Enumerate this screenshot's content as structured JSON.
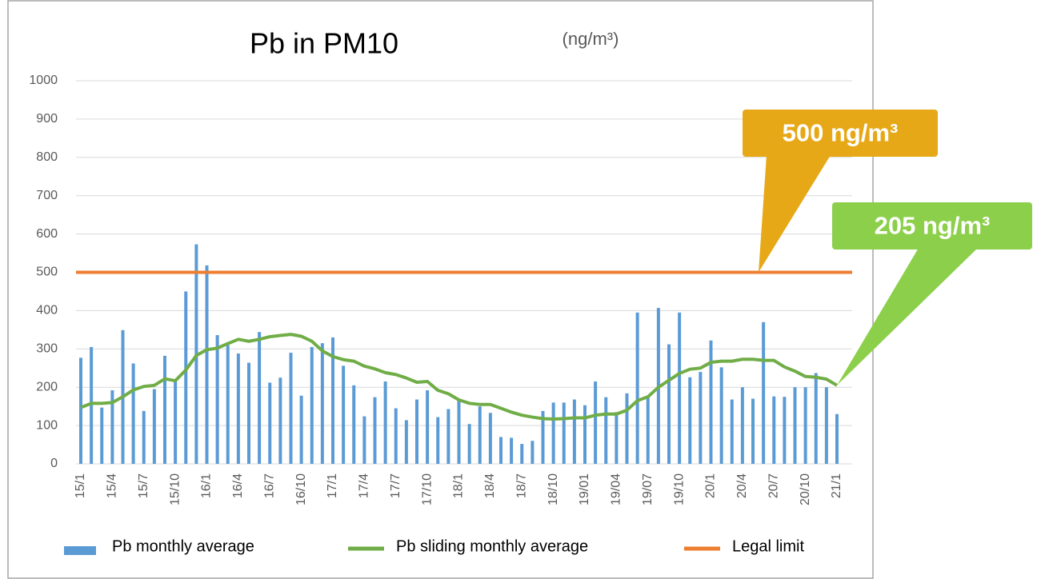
{
  "chart_data": {
    "type": "bar_line",
    "title": "Pb in PM10",
    "subtitle": "(ng/m³)",
    "categories": [
      "15/1",
      null,
      null,
      "15/4",
      null,
      null,
      "15/7",
      null,
      null,
      "15/10",
      null,
      null,
      "16/1",
      null,
      null,
      "16/4",
      null,
      null,
      "16/7",
      null,
      null,
      "16/10",
      null,
      null,
      "17/1",
      null,
      null,
      "17/4",
      null,
      null,
      "17/7",
      null,
      null,
      "17/10",
      null,
      null,
      "18/1",
      null,
      null,
      "18/4",
      null,
      null,
      "18/7",
      null,
      null,
      "18/10",
      null,
      null,
      "19/01",
      null,
      null,
      "19/04",
      null,
      null,
      "19/07",
      null,
      null,
      "19/10",
      null,
      null,
      "20/1",
      null,
      null,
      "20/4",
      null,
      null,
      "20/7",
      null,
      null,
      "20/10",
      null,
      null,
      "21/1"
    ],
    "series": [
      {
        "name": "Pb monthly average",
        "type": "bar",
        "color": "#5b9bd5",
        "values": [
          277,
          305,
          147,
          192,
          349,
          262,
          138,
          195,
          282,
          220,
          450,
          573,
          518,
          336,
          310,
          288,
          264,
          344,
          212,
          225,
          290,
          178,
          305,
          315,
          330,
          256,
          205,
          124,
          174,
          215,
          145,
          114,
          168,
          192,
          122,
          143,
          168,
          104,
          150,
          133,
          70,
          68,
          52,
          60,
          138,
          160,
          160,
          168,
          153,
          215,
          174,
          135,
          184,
          395,
          175,
          407,
          312,
          395,
          226,
          240,
          322,
          252,
          168,
          200,
          170,
          370,
          176,
          175,
          200,
          200,
          237,
          200,
          130
        ]
      },
      {
        "name": "Pb sliding monthly average",
        "type": "line",
        "color": "#70ad47",
        "values": [
          147,
          158,
          158,
          160,
          175,
          193,
          202,
          205,
          222,
          217,
          245,
          283,
          298,
          302,
          314,
          325,
          320,
          325,
          332,
          335,
          338,
          333,
          320,
          295,
          280,
          272,
          268,
          255,
          248,
          238,
          233,
          224,
          213,
          215,
          192,
          183,
          167,
          158,
          155,
          155,
          145,
          135,
          127,
          122,
          118,
          117,
          118,
          120,
          120,
          127,
          130,
          130,
          140,
          165,
          175,
          200,
          218,
          236,
          247,
          250,
          265,
          268,
          268,
          273,
          273,
          270,
          270,
          253,
          242,
          228,
          226,
          221,
          205
        ]
      },
      {
        "name": "Legal limit",
        "type": "hline",
        "color": "#ed7d31",
        "value": 500
      }
    ],
    "annotations": [
      {
        "text": "500 ng/m³",
        "color": "#e6a817"
      },
      {
        "text": "205 ng/m³",
        "color": "#8ccf4a"
      }
    ],
    "ylim": [
      0,
      1000
    ],
    "yticks": [
      0,
      100,
      200,
      300,
      400,
      500,
      600,
      700,
      800,
      900,
      1000
    ],
    "grid": true,
    "legend": "bottom"
  }
}
